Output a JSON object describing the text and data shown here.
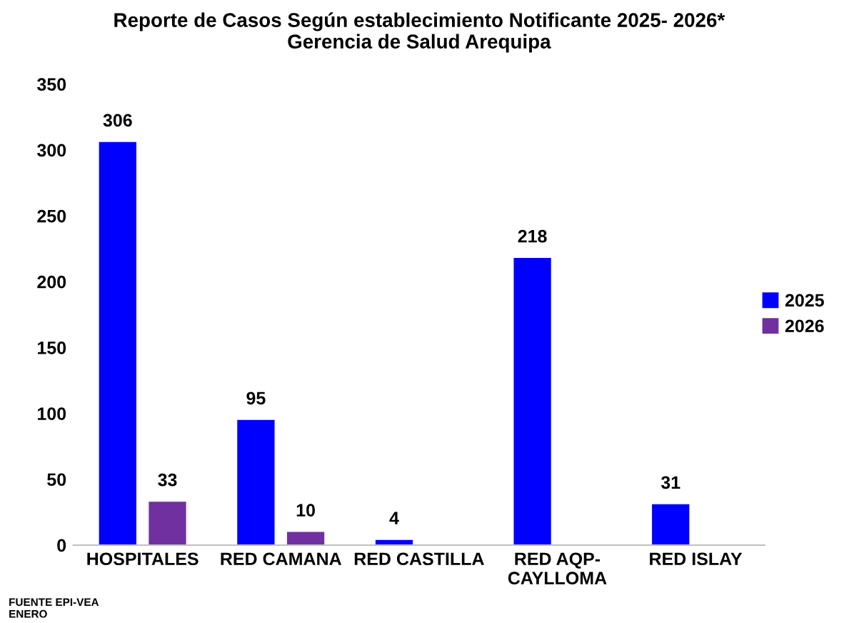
{
  "chart_data": {
    "type": "bar",
    "title": "Reporte de Casos Según establecimiento Notificante 2025- 2026*\nGerencia de Salud Arequipa",
    "categories": [
      "HOSPITALES",
      "RED CAMANA",
      "RED CASTILLA",
      "RED AQP-\nCAYLLOMA",
      "RED ISLAY"
    ],
    "series": [
      {
        "name": "2025",
        "color": "#0000ff",
        "values": [
          306,
          95,
          4,
          218,
          31
        ]
      },
      {
        "name": "2026",
        "color": "#7030a0",
        "values": [
          33,
          10,
          null,
          null,
          null
        ]
      }
    ],
    "ylim": [
      0,
      350
    ],
    "yticks": [
      0,
      50,
      100,
      150,
      200,
      250,
      300,
      350
    ],
    "grid": false,
    "legend": "right",
    "data_labels": true,
    "annotations": [
      "FUENTE EPI-VEA\nENERO"
    ]
  }
}
